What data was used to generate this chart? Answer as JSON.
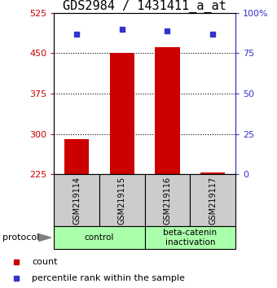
{
  "title": "GDS2984 / 1431411_a_at",
  "samples": [
    "GSM219114",
    "GSM219115",
    "GSM219116",
    "GSM219117"
  ],
  "bar_values": [
    291,
    450,
    462,
    228
  ],
  "percentile_values": [
    87,
    90,
    89,
    87
  ],
  "ylim_left": [
    225,
    525
  ],
  "ylim_right": [
    0,
    100
  ],
  "yticks_left": [
    225,
    300,
    375,
    450,
    525
  ],
  "yticks_right": [
    0,
    25,
    50,
    75,
    100
  ],
  "ytick_right_labels": [
    "0",
    "25",
    "50",
    "75",
    "100%"
  ],
  "grid_yticks": [
    300,
    375,
    450
  ],
  "bar_color": "#cc0000",
  "percentile_color": "#3333cc",
  "groups": [
    {
      "label": "control",
      "samples": [
        0,
        1
      ],
      "color": "#aaffaa"
    },
    {
      "label": "beta-catenin\ninactivation",
      "samples": [
        2,
        3
      ],
      "color": "#aaffaa"
    }
  ],
  "protocol_label": "protocol",
  "legend_count": "count",
  "legend_percentile": "percentile rank within the sample",
  "bar_width": 0.55,
  "bg_color": "white",
  "left_axis_color": "#cc0000",
  "right_axis_color": "#3333cc",
  "title_fontsize": 11,
  "tick_fontsize": 8,
  "sample_box_color": "#cccccc",
  "group_box_color": "#aaffaa"
}
